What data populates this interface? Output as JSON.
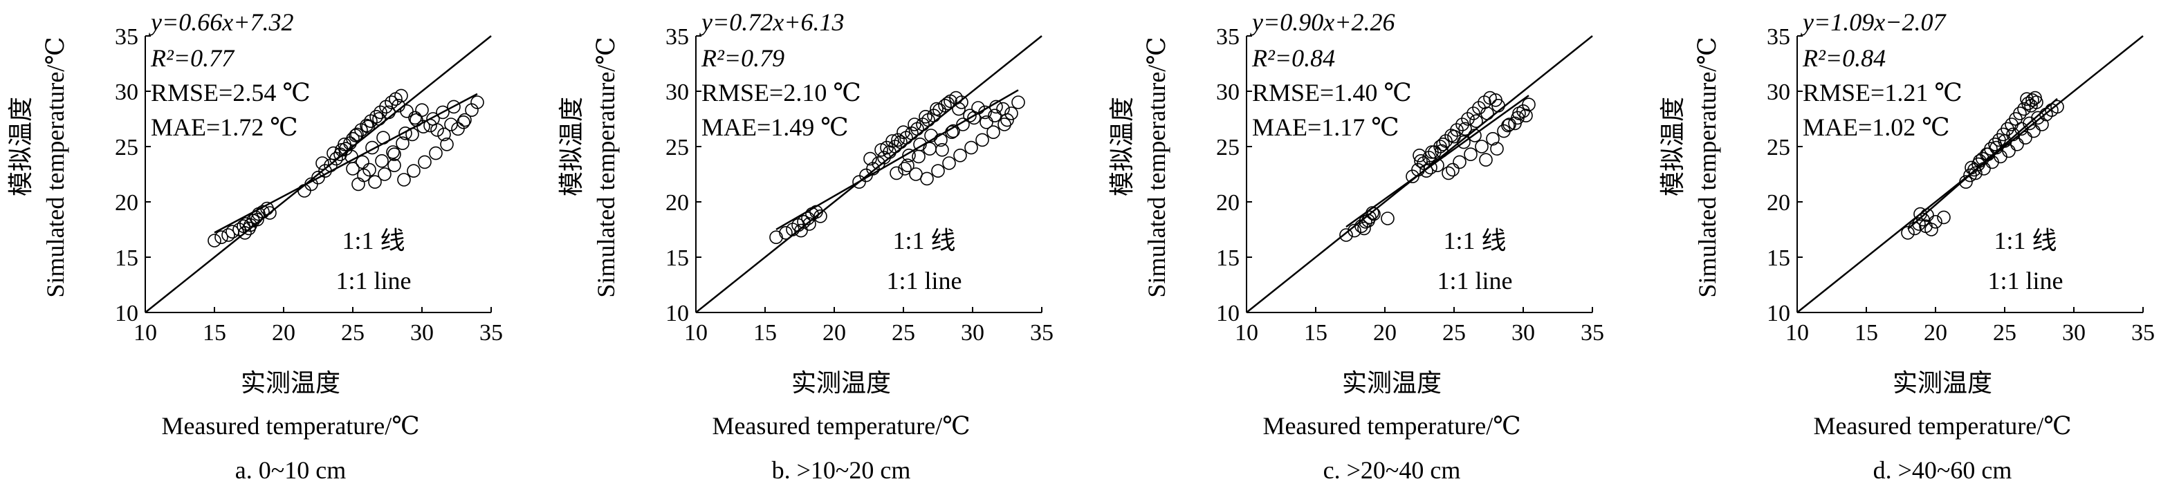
{
  "shared": {
    "xlabel_cn": "实测温度",
    "xlabel_en": "Measured temperature/℃",
    "ylabel_cn": "模拟温度",
    "ylabel_en": "Simulated temperature/℃",
    "line_cn": "1:1 线",
    "line_en": "1:1 line",
    "xticks": [
      "10",
      "15",
      "20",
      "25",
      "30",
      "35"
    ],
    "yticks": [
      "10",
      "15",
      "20",
      "25",
      "30",
      "35"
    ]
  },
  "chart_data": [
    {
      "type": "scatter",
      "caption": "a. 0~10 cm",
      "equation": "y=0.66x+7.32",
      "r2": "R²=0.77",
      "rmse": "RMSE=2.54 ℃",
      "mae": "MAE=1.72 ℃",
      "slope": 0.66,
      "intercept": 7.32,
      "xlim": [
        10,
        35
      ],
      "ylim": [
        10,
        35
      ],
      "x": [
        15.0,
        15.5,
        16.0,
        16.3,
        16.8,
        17.1,
        17.3,
        17.5,
        17.8,
        18.0,
        18.2,
        18.5,
        18.8,
        19.0,
        17.2,
        17.6,
        18.1,
        21.5,
        22.0,
        22.5,
        23.0,
        23.4,
        23.8,
        24.1,
        24.5,
        24.8,
        25.0,
        25.3,
        25.6,
        26.0,
        26.3,
        26.7,
        27.0,
        27.4,
        27.8,
        28.1,
        28.5,
        22.8,
        23.6,
        24.4,
        25.2,
        26.1,
        26.9,
        27.6,
        28.3,
        28.9,
        29.5,
        30.0,
        30.6,
        31.1,
        31.6,
        32.1,
        32.6,
        33.1,
        33.6,
        34.0,
        25.0,
        25.8,
        26.6,
        27.3,
        28.0,
        28.7,
        29.4,
        30.2,
        31.0,
        31.8,
        25.4,
        26.2,
        27.1,
        27.9,
        28.6,
        29.3,
        30.1,
        30.8,
        31.5,
        32.3,
        33.0,
        24.2,
        24.9,
        25.7,
        26.4,
        27.2,
        28.0,
        28.8,
        29.6
      ],
      "y": [
        16.5,
        16.8,
        17.0,
        17.3,
        17.5,
        17.8,
        18.0,
        17.6,
        18.3,
        18.6,
        18.9,
        19.1,
        19.4,
        19.0,
        17.2,
        17.9,
        18.4,
        21.0,
        21.6,
        22.2,
        22.8,
        23.3,
        23.9,
        24.3,
        24.8,
        25.3,
        25.7,
        26.1,
        26.5,
        26.9,
        27.3,
        27.7,
        28.1,
        28.6,
        29.0,
        29.3,
        29.6,
        23.5,
        24.4,
        25.2,
        26.0,
        26.8,
        27.5,
        28.1,
        28.7,
        28.2,
        27.6,
        28.3,
        26.9,
        26.5,
        26.1,
        27.0,
        26.6,
        27.4,
        28.3,
        29.0,
        23.0,
        22.4,
        21.8,
        22.5,
        23.3,
        22.0,
        22.8,
        23.6,
        24.4,
        25.2,
        21.6,
        22.9,
        23.7,
        24.5,
        25.3,
        26.1,
        26.8,
        27.5,
        28.1,
        28.6,
        27.2,
        24.7,
        24.1,
        23.6,
        24.9,
        25.8,
        24.3,
        26.2,
        27.4
      ]
    },
    {
      "type": "scatter",
      "caption": "b. >10~20 cm",
      "equation": "y=0.72x+6.13",
      "r2": "R²=0.79",
      "rmse": "RMSE=2.10 ℃",
      "mae": "MAE=1.49 ℃",
      "slope": 0.72,
      "intercept": 6.13,
      "xlim": [
        10,
        35
      ],
      "ylim": [
        10,
        35
      ],
      "x": [
        15.8,
        16.5,
        17.0,
        17.4,
        17.8,
        18.1,
        18.4,
        18.7,
        19.0,
        17.6,
        18.2,
        21.8,
        22.3,
        22.8,
        23.2,
        23.6,
        24.0,
        24.4,
        24.8,
        25.2,
        25.6,
        26.0,
        26.4,
        26.8,
        27.2,
        27.6,
        28.0,
        28.4,
        28.8,
        29.2,
        22.6,
        23.4,
        24.2,
        25.0,
        25.8,
        26.6,
        27.4,
        28.2,
        29.0,
        29.8,
        30.4,
        31.0,
        31.6,
        32.2,
        32.8,
        33.3,
        25.1,
        25.9,
        26.7,
        27.5,
        28.3,
        29.1,
        29.9,
        30.7,
        31.5,
        32.3,
        24.5,
        25.3,
        26.1,
        26.9,
        27.7,
        28.5,
        29.3,
        30.1,
        30.9,
        31.7,
        32.5,
        23.8,
        24.6,
        25.4,
        26.2,
        27.0,
        27.8,
        28.6
      ],
      "y": [
        16.8,
        17.2,
        17.5,
        17.9,
        18.2,
        18.5,
        18.9,
        19.1,
        18.7,
        17.4,
        18.0,
        21.8,
        22.4,
        23.0,
        23.5,
        24.0,
        24.5,
        25.0,
        25.4,
        25.8,
        26.2,
        26.6,
        27.0,
        27.4,
        27.8,
        28.3,
        28.7,
        29.1,
        29.4,
        29.0,
        23.9,
        24.7,
        25.5,
        26.3,
        27.0,
        27.7,
        28.4,
        28.9,
        28.4,
        27.8,
        28.5,
        27.2,
        27.8,
        28.4,
        28.0,
        29.0,
        23.0,
        22.5,
        22.1,
        22.8,
        23.5,
        24.2,
        24.9,
        25.6,
        26.3,
        27.0,
        22.6,
        23.3,
        24.1,
        24.8,
        25.6,
        26.3,
        27.0,
        27.6,
        28.1,
        28.6,
        27.4,
        24.9,
        25.6,
        24.2,
        25.2,
        26.0,
        24.7,
        26.4
      ]
    },
    {
      "type": "scatter",
      "caption": "c. >20~40 cm",
      "equation": "y=0.90x+2.26",
      "r2": "R²=0.84",
      "rmse": "RMSE=1.40 ℃",
      "mae": "MAE=1.17 ℃",
      "slope": 0.9,
      "intercept": 2.26,
      "xlim": [
        10,
        35
      ],
      "ylim": [
        10,
        35
      ],
      "x": [
        17.2,
        17.8,
        18.3,
        18.6,
        18.9,
        19.2,
        18.5,
        18.8,
        19.1,
        20.2,
        22.0,
        22.4,
        22.8,
        23.2,
        23.6,
        24.0,
        24.4,
        24.8,
        25.2,
        25.6,
        26.0,
        26.4,
        26.8,
        27.2,
        27.6,
        28.0,
        22.6,
        23.4,
        24.2,
        25.0,
        25.8,
        26.6,
        27.4,
        28.2,
        29.0,
        29.6,
        30.0,
        30.4,
        23.0,
        23.8,
        24.6,
        25.4,
        26.2,
        27.0,
        27.8,
        28.6,
        29.4,
        30.2,
        22.5,
        23.3,
        24.1,
        24.9,
        25.7,
        26.5,
        27.3,
        28.1,
        28.9,
        29.7
      ],
      "y": [
        17.0,
        17.4,
        17.8,
        18.2,
        18.6,
        18.9,
        17.6,
        18.3,
        19.0,
        18.5,
        22.3,
        22.9,
        23.5,
        24.0,
        24.5,
        25.0,
        25.5,
        26.0,
        26.5,
        27.0,
        27.5,
        28.0,
        28.5,
        29.0,
        29.4,
        29.2,
        23.7,
        24.5,
        25.2,
        25.9,
        26.6,
        27.3,
        28.0,
        28.7,
        27.0,
        27.6,
        28.2,
        28.8,
        22.8,
        23.3,
        22.6,
        23.6,
        24.3,
        25.0,
        25.7,
        26.4,
        27.1,
        27.8,
        24.2,
        23.1,
        24.6,
        22.9,
        25.4,
        26.0,
        23.8,
        24.8,
        26.9,
        28.0
      ]
    },
    {
      "type": "scatter",
      "caption": "d. >40~60 cm",
      "equation": "y=1.09x−2.07",
      "r2": "R²=0.84",
      "rmse": "RMSE=1.21 ℃",
      "mae": "MAE=1.02 ℃",
      "slope": 1.09,
      "intercept": -2.07,
      "xlim": [
        10,
        35
      ],
      "ylim": [
        10,
        35
      ],
      "x": [
        18.0,
        18.5,
        18.8,
        19.1,
        19.4,
        19.7,
        18.9,
        19.3,
        20.0,
        20.6,
        22.2,
        22.5,
        22.8,
        23.1,
        23.4,
        23.7,
        24.0,
        24.3,
        24.6,
        24.9,
        25.2,
        25.5,
        25.8,
        26.1,
        26.4,
        26.7,
        27.0,
        27.3,
        22.6,
        23.2,
        23.8,
        24.4,
        25.0,
        25.6,
        26.2,
        26.8,
        27.4,
        28.0,
        28.4,
        28.8,
        22.9,
        23.5,
        24.1,
        24.7,
        25.3,
        25.9,
        26.5,
        27.1,
        27.7,
        26.6,
        26.9,
        27.2
      ],
      "y": [
        17.2,
        17.6,
        18.0,
        18.4,
        18.8,
        17.5,
        18.9,
        17.8,
        18.2,
        18.6,
        21.8,
        22.4,
        22.9,
        23.4,
        23.9,
        24.3,
        24.8,
        25.2,
        25.6,
        26.1,
        26.6,
        27.0,
        27.5,
        28.0,
        28.4,
        28.9,
        29.2,
        29.0,
        23.1,
        23.7,
        24.3,
        24.9,
        25.5,
        26.1,
        26.6,
        27.1,
        27.6,
        27.9,
        28.3,
        28.6,
        22.6,
        23.0,
        23.6,
        24.1,
        24.6,
        25.2,
        25.8,
        26.4,
        27.0,
        29.3,
        28.7,
        29.4
      ]
    }
  ]
}
